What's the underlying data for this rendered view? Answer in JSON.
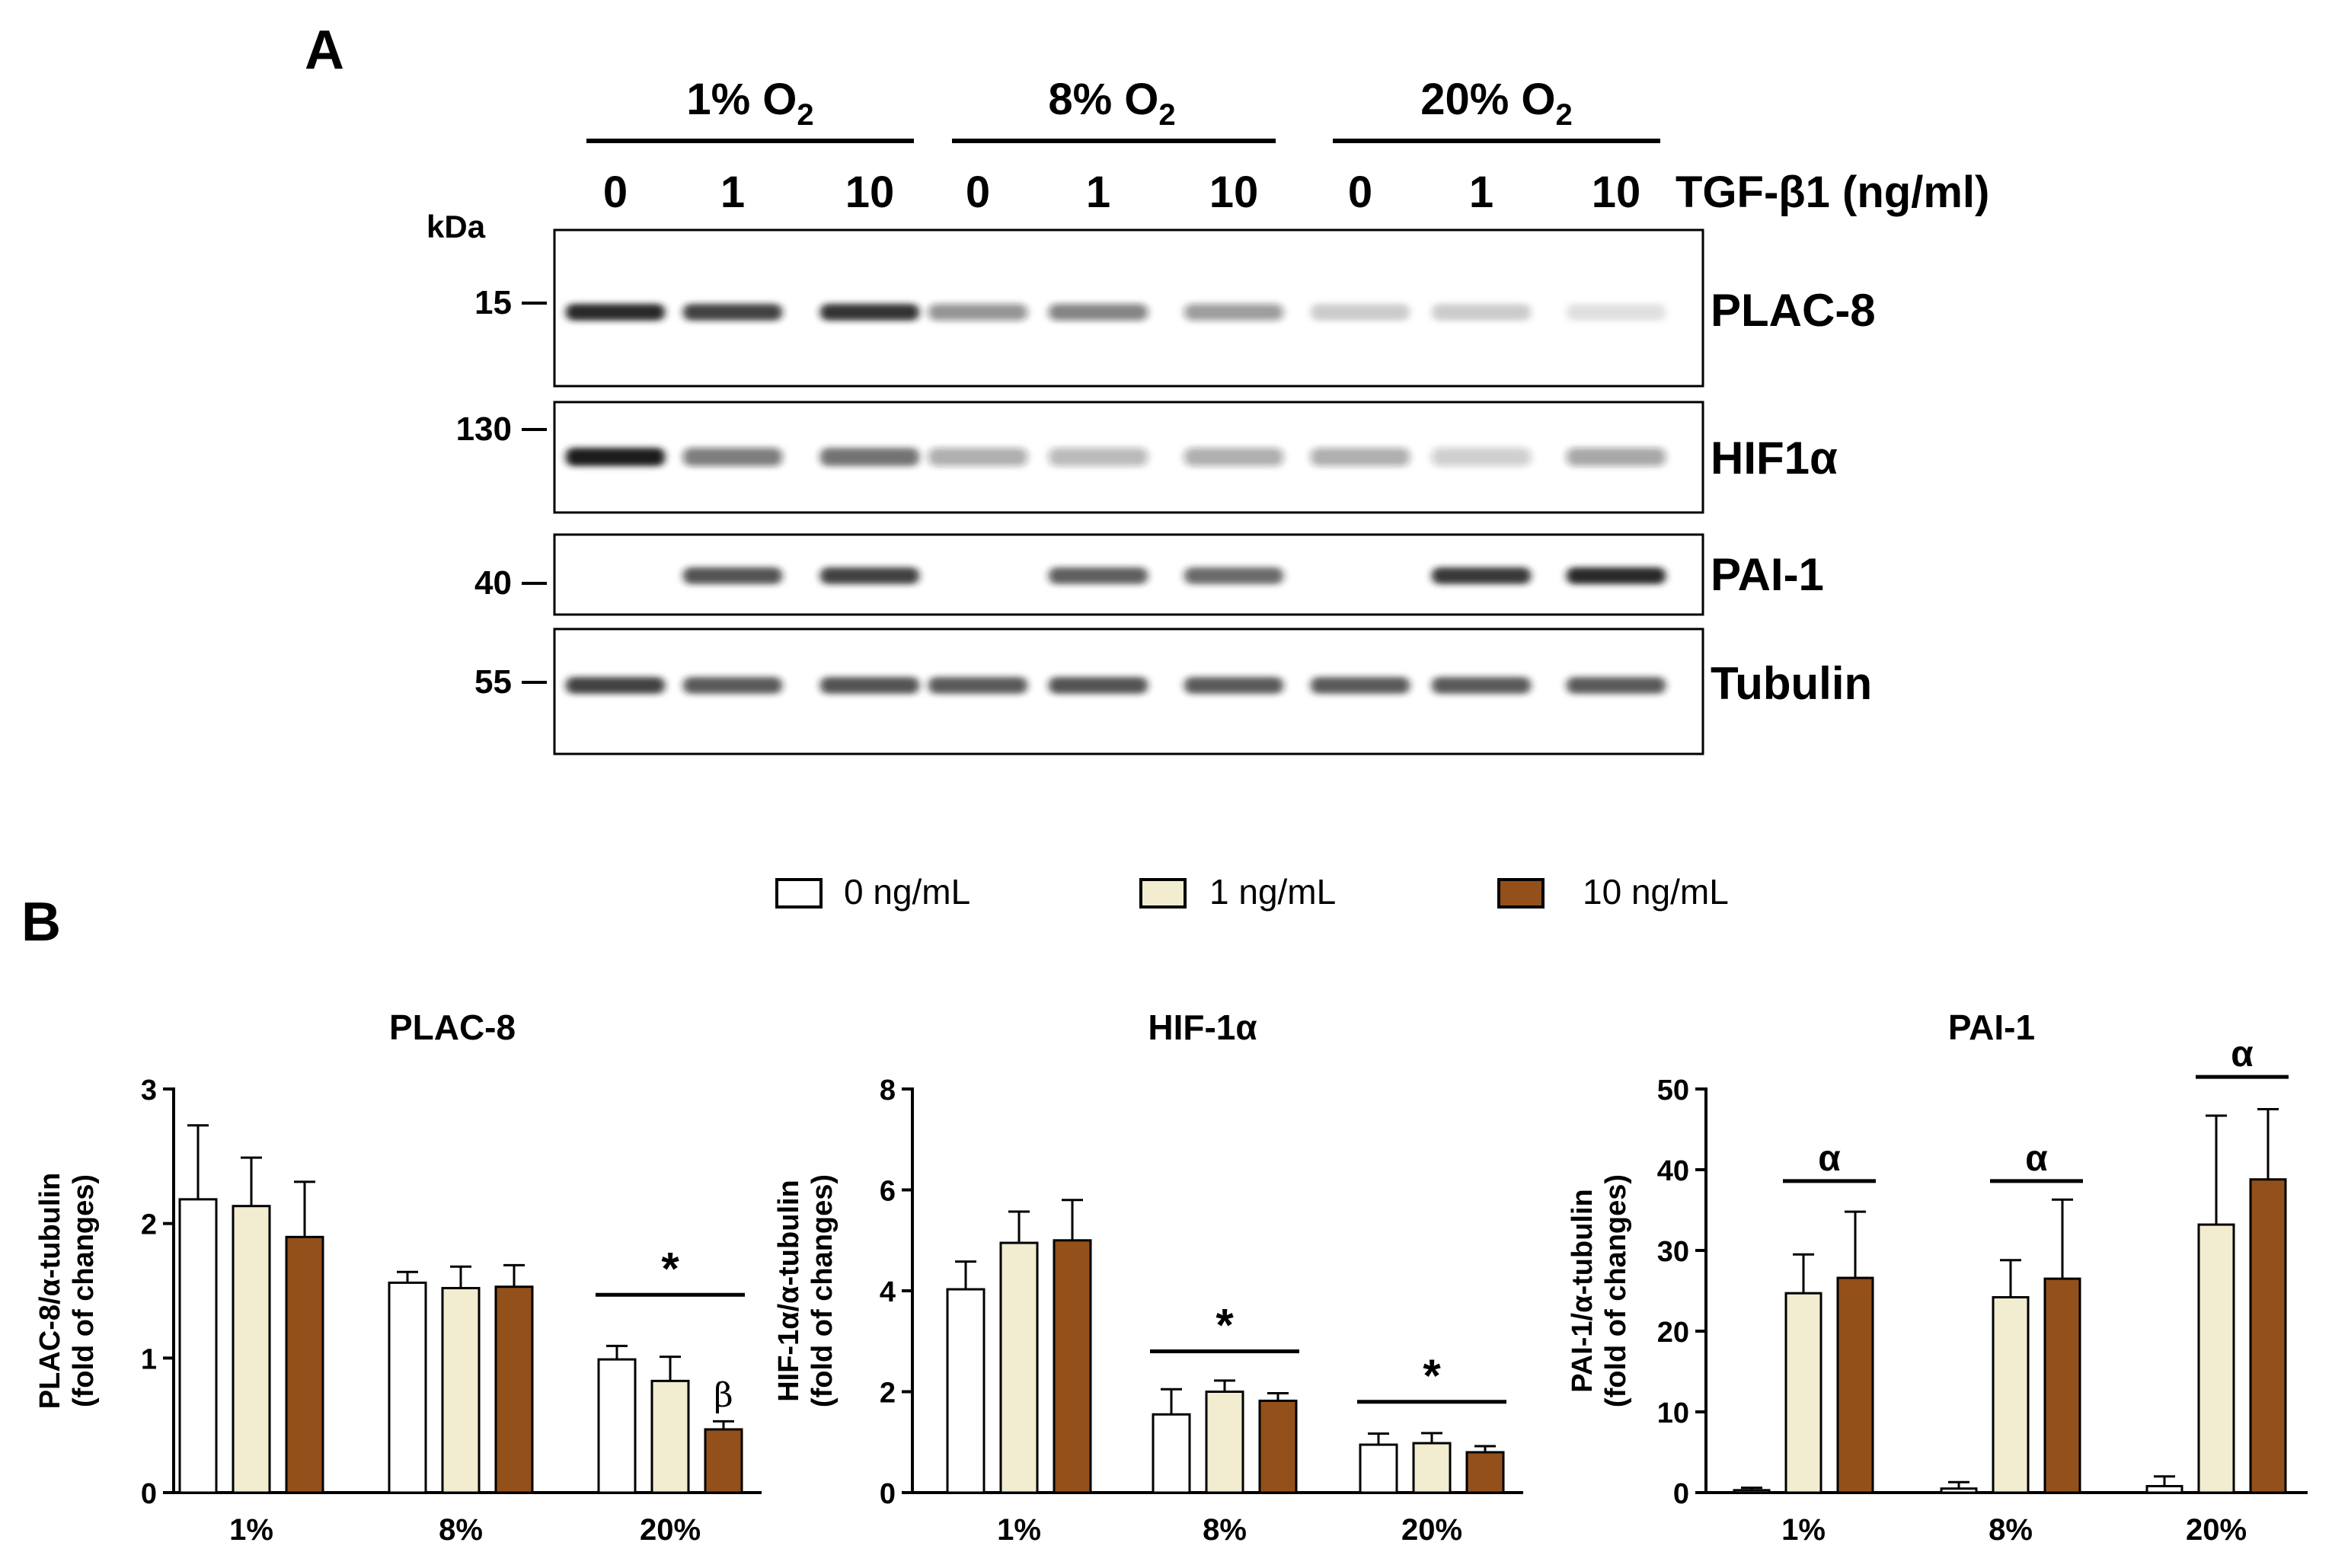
{
  "panel_a": {
    "label": "A",
    "groups": [
      {
        "main": "1% O",
        "sub": "2"
      },
      {
        "main": "8% O",
        "sub": "2"
      },
      {
        "main": "20% O",
        "sub": "2"
      }
    ],
    "lanes": [
      "0",
      "1",
      "10",
      "0",
      "1",
      "10",
      "0",
      "1",
      "10"
    ],
    "treatment_label": "TGF-β1 (ng/ml)",
    "kda_label": "kDa",
    "blots": [
      {
        "name": "PLAC-8",
        "kda": "15",
        "intensity": [
          0.95,
          0.82,
          0.88,
          0.45,
          0.52,
          0.42,
          0.2,
          0.2,
          0.12
        ]
      },
      {
        "name": "HIF1α",
        "kda": "130",
        "intensity": [
          1.0,
          0.55,
          0.62,
          0.35,
          0.3,
          0.35,
          0.35,
          0.22,
          0.38
        ]
      },
      {
        "name": "PAI-1",
        "kda": "40",
        "intensity": [
          0.0,
          0.75,
          0.82,
          0.0,
          0.7,
          0.66,
          0.0,
          0.86,
          0.95
        ]
      },
      {
        "name": "Tubulin",
        "kda": "55",
        "intensity": [
          0.82,
          0.72,
          0.75,
          0.72,
          0.75,
          0.72,
          0.72,
          0.72,
          0.72
        ]
      }
    ]
  },
  "panel_b": {
    "label": "B",
    "legend": [
      {
        "label": "0 ng/mL",
        "color": "#ffffff"
      },
      {
        "label": "1 ng/mL",
        "color": "#f2ecd0"
      },
      {
        "label": "10 ng/mL",
        "color": "#93501a"
      }
    ]
  },
  "chart_data": [
    {
      "type": "bar",
      "title": "PLAC-8",
      "ylabel": "PLAC-8/α-tubulin",
      "ylabel2": "(fold of changes)",
      "categories": [
        "1%",
        "8%",
        "20%"
      ],
      "ylim": [
        0,
        3
      ],
      "yticks": [
        0,
        1,
        2,
        3
      ],
      "series": [
        {
          "name": "0 ng/mL",
          "values": [
            2.18,
            1.56,
            0.99
          ],
          "errors": [
            0.55,
            0.08,
            0.1
          ]
        },
        {
          "name": "1 ng/mL",
          "values": [
            2.13,
            1.52,
            0.83
          ],
          "errors": [
            0.36,
            0.16,
            0.18
          ]
        },
        {
          "name": "10 ng/mL",
          "values": [
            1.9,
            1.53,
            0.47
          ],
          "errors": [
            0.41,
            0.16,
            0.06
          ]
        }
      ],
      "annotations": [
        {
          "text": "*",
          "category": "20%",
          "bars": [
            0,
            2
          ],
          "y": 1.47
        },
        {
          "text": "β",
          "category": "20%",
          "bar": 2,
          "y": 0.64
        }
      ]
    },
    {
      "type": "bar",
      "title": "HIF-1α",
      "ylabel": "HIF-1α/α-tubulin",
      "ylabel2": "(fold of changes)",
      "categories": [
        "1%",
        "8%",
        "20%"
      ],
      "ylim": [
        0,
        8
      ],
      "yticks": [
        0,
        2,
        4,
        6,
        8
      ],
      "series": [
        {
          "name": "0 ng/mL",
          "values": [
            4.03,
            1.55,
            0.95
          ],
          "errors": [
            0.55,
            0.5,
            0.22
          ]
        },
        {
          "name": "1 ng/mL",
          "values": [
            4.95,
            2.0,
            0.98
          ],
          "errors": [
            0.62,
            0.22,
            0.2
          ]
        },
        {
          "name": "10 ng/mL",
          "values": [
            5.0,
            1.82,
            0.8
          ],
          "errors": [
            0.8,
            0.15,
            0.12
          ]
        }
      ],
      "annotations": [
        {
          "text": "*",
          "category": "8%",
          "bars": [
            0,
            2
          ],
          "y": 2.8
        },
        {
          "text": "*",
          "category": "20%",
          "bars": [
            0,
            2
          ],
          "y": 1.8
        }
      ]
    },
    {
      "type": "bar",
      "title": "PAI-1",
      "ylabel": "PAI-1/α-tubulin",
      "ylabel2": "(fold of changes)",
      "categories": [
        "1%",
        "8%",
        "20%"
      ],
      "ylim": [
        0,
        50
      ],
      "yticks": [
        0,
        10,
        20,
        30,
        40,
        50
      ],
      "series": [
        {
          "name": "0 ng/mL",
          "values": [
            0.3,
            0.5,
            0.8
          ],
          "errors": [
            0.3,
            0.8,
            1.2
          ]
        },
        {
          "name": "1 ng/mL",
          "values": [
            24.7,
            24.2,
            33.2
          ],
          "errors": [
            4.8,
            4.6,
            13.5
          ]
        },
        {
          "name": "10 ng/mL",
          "values": [
            26.6,
            26.5,
            38.8
          ],
          "errors": [
            8.2,
            9.8,
            8.7
          ]
        }
      ],
      "annotations": [
        {
          "text": "α",
          "category": "1%",
          "bars": [
            1,
            2
          ],
          "y": 38.6
        },
        {
          "text": "α",
          "category": "8%",
          "bars": [
            1,
            2
          ],
          "y": 38.6
        },
        {
          "text": "α",
          "category": "20%",
          "bars": [
            1,
            2
          ],
          "y": 51.5
        }
      ]
    }
  ]
}
